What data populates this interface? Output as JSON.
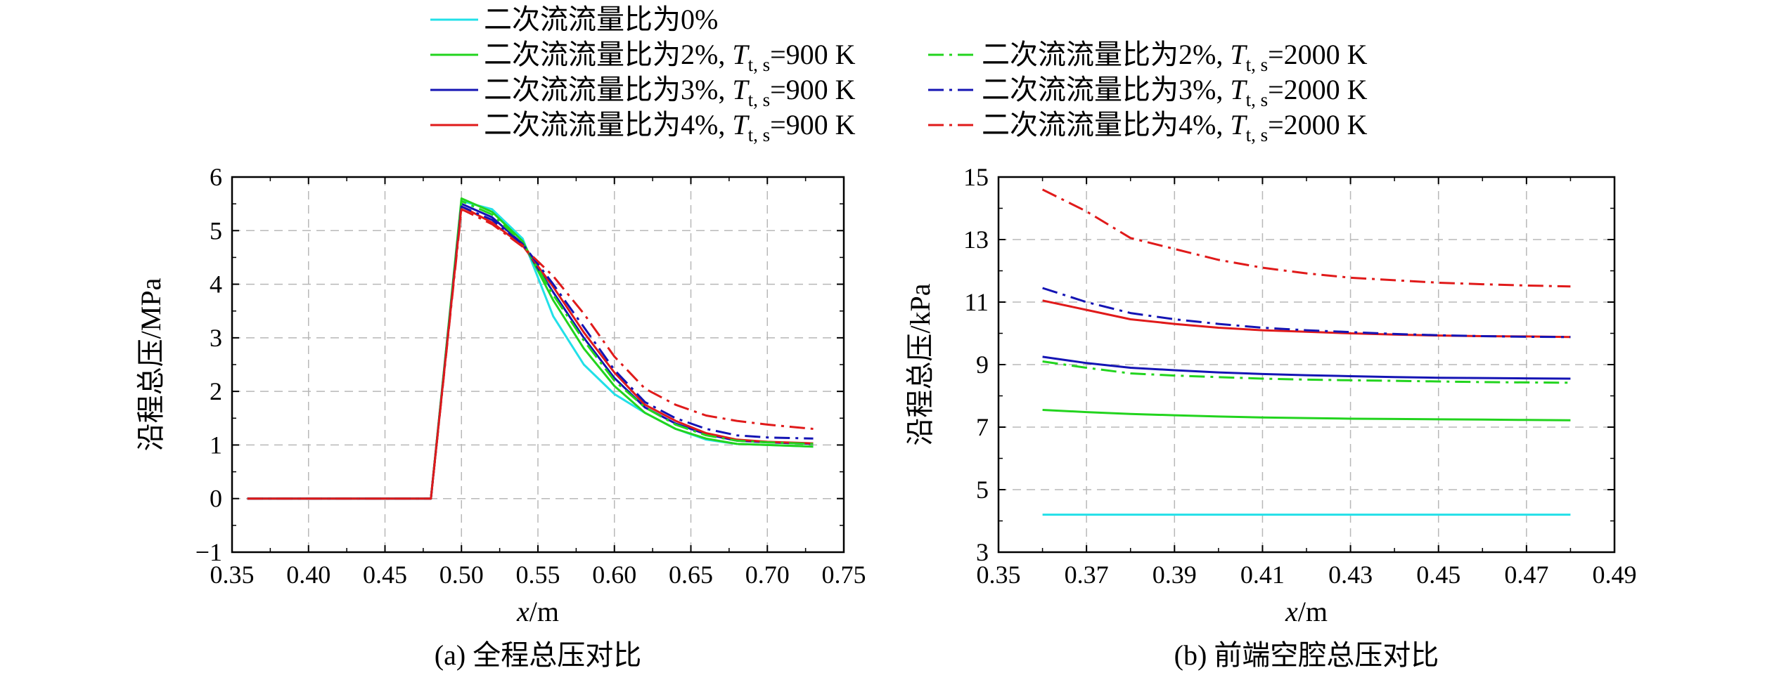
{
  "legend": [
    {
      "text": "二次流流量比为0%",
      "color": "#22e0e8",
      "dash": "solid"
    },
    {
      "text": "二次流流量比为2%, ",
      "temp": "=900 K",
      "color": "#22d41e",
      "dash": "solid"
    },
    {
      "text": "二次流流量比为3%, ",
      "temp": "=900 K",
      "color": "#1414b4",
      "dash": "solid"
    },
    {
      "text": "二次流流量比为4%, ",
      "temp": "=900 K",
      "color": "#e01a1a",
      "dash": "solid"
    },
    {
      "text": "二次流流量比为2%, ",
      "temp": "=2000 K",
      "color": "#22d41e",
      "dash": "dashdot"
    },
    {
      "text": "二次流流量比为3%, ",
      "temp": "=2000 K",
      "color": "#1414b4",
      "dash": "dashdot"
    },
    {
      "text": "二次流流量比为4%, ",
      "temp": "=2000 K",
      "color": "#e01a1a",
      "dash": "dashdot"
    }
  ],
  "temp_symbol": {
    "main": "T",
    "sub": "t, s"
  },
  "chart_data": [
    {
      "type": "line",
      "caption": "(a) 全程总压对比",
      "xlabel_var": "x",
      "xlabel_unit": "/m",
      "ylabel": "沿程总压/MPa",
      "xlim": [
        0.35,
        0.75
      ],
      "ylim": [
        -1,
        6
      ],
      "xticks": [
        "0.35",
        "0.40",
        "0.45",
        "0.50",
        "0.55",
        "0.60",
        "0.65",
        "0.70",
        "0.75"
      ],
      "yticks": [
        "−1",
        "0",
        "1",
        "2",
        "3",
        "4",
        "5",
        "6"
      ],
      "grid": true,
      "x": [
        0.36,
        0.48,
        0.5,
        0.52,
        0.54,
        0.56,
        0.58,
        0.6,
        0.62,
        0.64,
        0.66,
        0.68,
        0.7,
        0.73
      ],
      "series": [
        {
          "name": "二次流流量比为0%",
          "color": "#22e0e8",
          "dash": "solid",
          "values": [
            0,
            0,
            5.55,
            5.4,
            4.85,
            3.4,
            2.5,
            1.95,
            1.6,
            1.3,
            1.1,
            1.02,
            1.0,
            0.97
          ]
        },
        {
          "name": "二次流流量比为2%, T t, s=900 K",
          "color": "#22d41e",
          "dash": "solid",
          "values": [
            0,
            0,
            5.6,
            5.35,
            4.8,
            3.7,
            2.8,
            2.1,
            1.6,
            1.3,
            1.12,
            1.02,
            1.0,
            0.97
          ]
        },
        {
          "name": "二次流流量比为3%, T t, s=900 K",
          "color": "#1414b4",
          "dash": "solid",
          "values": [
            0,
            0,
            5.5,
            5.25,
            4.75,
            3.85,
            3.0,
            2.25,
            1.7,
            1.4,
            1.2,
            1.08,
            1.05,
            1.02
          ]
        },
        {
          "name": "二次流流量比为4%, T t, s=900 K",
          "color": "#e01a1a",
          "dash": "solid",
          "values": [
            0,
            0,
            5.45,
            5.15,
            4.72,
            3.95,
            3.1,
            2.35,
            1.75,
            1.45,
            1.22,
            1.1,
            1.06,
            1.03
          ]
        },
        {
          "name": "二次流流量比为2%, T t, s=2000 K",
          "color": "#22d41e",
          "dash": "dashdot",
          "values": [
            0,
            0,
            5.55,
            5.3,
            4.78,
            3.8,
            2.95,
            2.2,
            1.7,
            1.38,
            1.18,
            1.08,
            1.05,
            1.02
          ]
        },
        {
          "name": "二次流流量比为3%, T t, s=2000 K",
          "color": "#1414b4",
          "dash": "dashdot",
          "values": [
            0,
            0,
            5.45,
            5.2,
            4.75,
            4.0,
            3.2,
            2.4,
            1.8,
            1.5,
            1.3,
            1.18,
            1.14,
            1.12
          ]
        },
        {
          "name": "二次流流量比为4%, T t, s=2000 K",
          "color": "#e01a1a",
          "dash": "dashdot",
          "values": [
            0,
            0,
            5.4,
            5.12,
            4.7,
            4.15,
            3.45,
            2.65,
            2.05,
            1.75,
            1.55,
            1.45,
            1.38,
            1.3
          ]
        }
      ]
    },
    {
      "type": "line",
      "caption": "(b) 前端空腔总压对比",
      "xlabel_var": "x",
      "xlabel_unit": "/m",
      "ylabel": "沿程总压/kPa",
      "xlim": [
        0.35,
        0.49
      ],
      "ylim": [
        3,
        15
      ],
      "xticks": [
        "0.35",
        "0.37",
        "0.39",
        "0.41",
        "0.43",
        "0.45",
        "0.47",
        "0.49"
      ],
      "yticks": [
        "3",
        "5",
        "7",
        "9",
        "11",
        "13",
        "15"
      ],
      "grid": true,
      "x": [
        0.36,
        0.37,
        0.38,
        0.39,
        0.4,
        0.41,
        0.42,
        0.43,
        0.44,
        0.45,
        0.46,
        0.47,
        0.48
      ],
      "series": [
        {
          "name": "二次流流量比为0%",
          "color": "#22e0e8",
          "dash": "solid",
          "values": [
            4.2,
            4.2,
            4.2,
            4.2,
            4.2,
            4.2,
            4.2,
            4.2,
            4.2,
            4.2,
            4.2,
            4.2,
            4.2
          ]
        },
        {
          "name": "二次流流量比为2%, T t, s=900 K",
          "color": "#22d41e",
          "dash": "solid",
          "values": [
            7.55,
            7.48,
            7.42,
            7.38,
            7.34,
            7.31,
            7.29,
            7.27,
            7.26,
            7.25,
            7.24,
            7.23,
            7.22
          ]
        },
        {
          "name": "二次流流量比为3%, T t, s=900 K",
          "color": "#1414b4",
          "dash": "solid",
          "values": [
            9.25,
            9.05,
            8.9,
            8.82,
            8.75,
            8.7,
            8.66,
            8.63,
            8.6,
            8.58,
            8.57,
            8.56,
            8.55
          ]
        },
        {
          "name": "二次流流量比为4%, T t, s=900 K",
          "color": "#e01a1a",
          "dash": "solid",
          "values": [
            11.05,
            10.75,
            10.45,
            10.3,
            10.18,
            10.1,
            10.05,
            10.0,
            9.96,
            9.93,
            9.91,
            9.9,
            9.88
          ]
        },
        {
          "name": "二次流流量比为2%, T t, s=2000 K",
          "color": "#22d41e",
          "dash": "dashdot",
          "values": [
            9.1,
            8.9,
            8.72,
            8.65,
            8.6,
            8.55,
            8.52,
            8.5,
            8.48,
            8.46,
            8.44,
            8.43,
            8.42
          ]
        },
        {
          "name": "二次流流量比为3%, T t, s=2000 K",
          "color": "#1414b4",
          "dash": "dashdot",
          "values": [
            11.45,
            11.0,
            10.65,
            10.45,
            10.3,
            10.18,
            10.1,
            10.04,
            9.98,
            9.94,
            9.91,
            9.89,
            9.88
          ]
        },
        {
          "name": "二次流流量比为4%, T t, s=2000 K",
          "color": "#e01a1a",
          "dash": "dashdot",
          "values": [
            14.6,
            13.9,
            13.05,
            12.7,
            12.35,
            12.1,
            11.92,
            11.78,
            11.7,
            11.62,
            11.57,
            11.53,
            11.5
          ]
        }
      ]
    }
  ]
}
